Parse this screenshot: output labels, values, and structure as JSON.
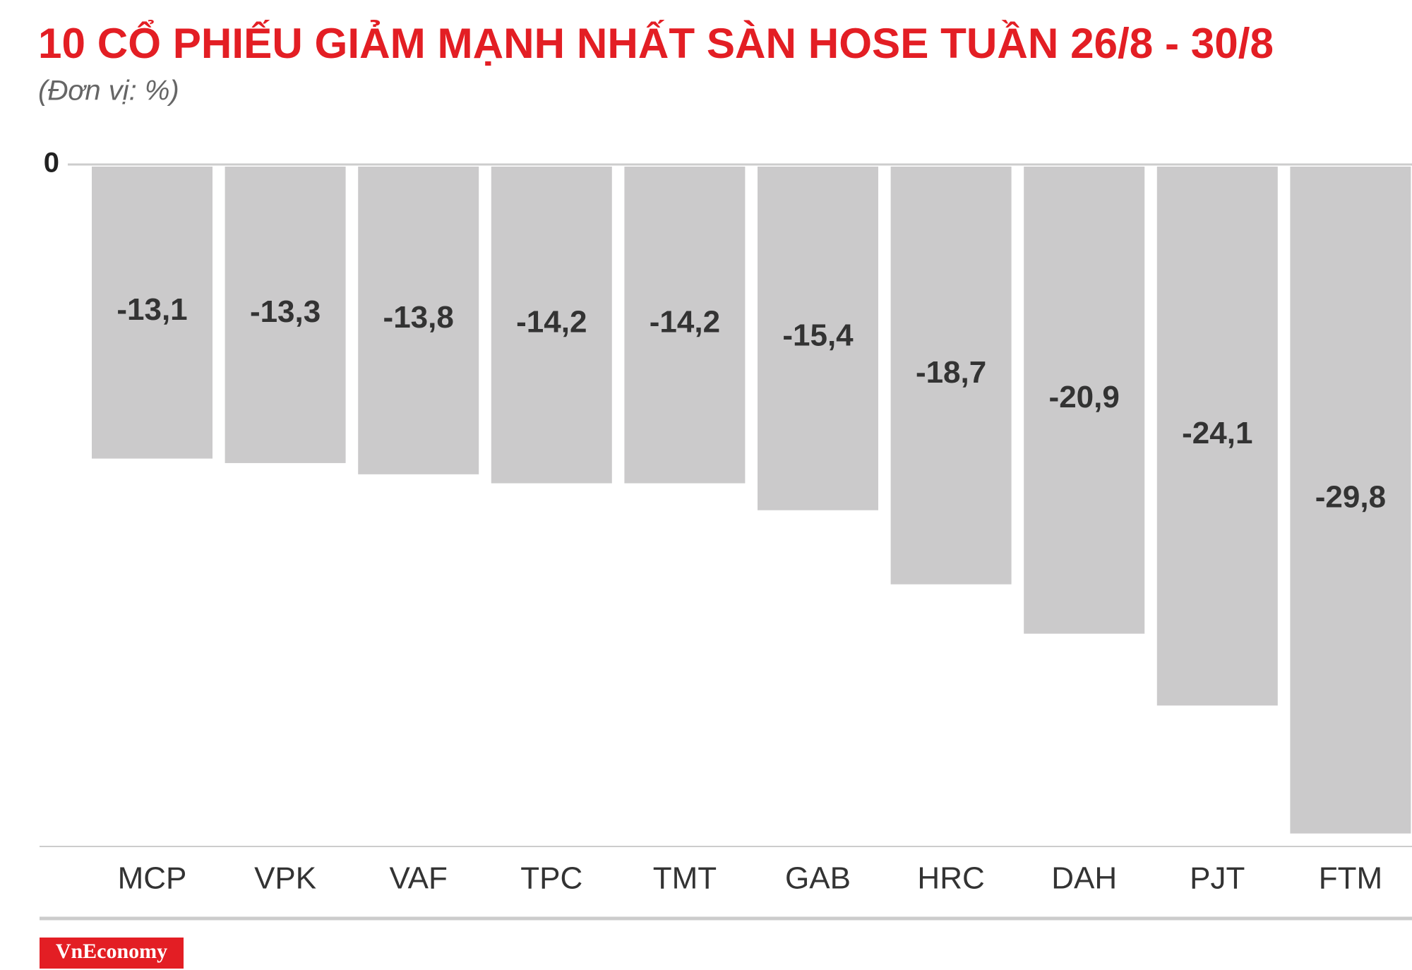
{
  "chart_data": {
    "type": "bar",
    "title": "10 CỔ PHIẾU GIẢM MẠNH NHẤT SÀN HOSE TUẦN 26/8 - 30/8",
    "subtitle": "(Đơn vị: %)",
    "categories": [
      "MCP",
      "VPK",
      "VAF",
      "TPC",
      "TMT",
      "GAB",
      "HRC",
      "DAH",
      "PJT",
      "FTM"
    ],
    "values": [
      -13.1,
      -13.3,
      -13.8,
      -14.2,
      -14.2,
      -15.4,
      -18.7,
      -20.9,
      -24.1,
      -29.8
    ],
    "value_labels": [
      "-13,1",
      "-13,3",
      "-13,8",
      "-14,2",
      "-14,2",
      "-15,4",
      "-18,7",
      "-20,9",
      "-24,1",
      "-29,8"
    ],
    "color": "#cbcacb",
    "ylim": [
      -30,
      0
    ],
    "yticks": [
      0
    ],
    "grid": false,
    "source": "VnEconomy"
  }
}
